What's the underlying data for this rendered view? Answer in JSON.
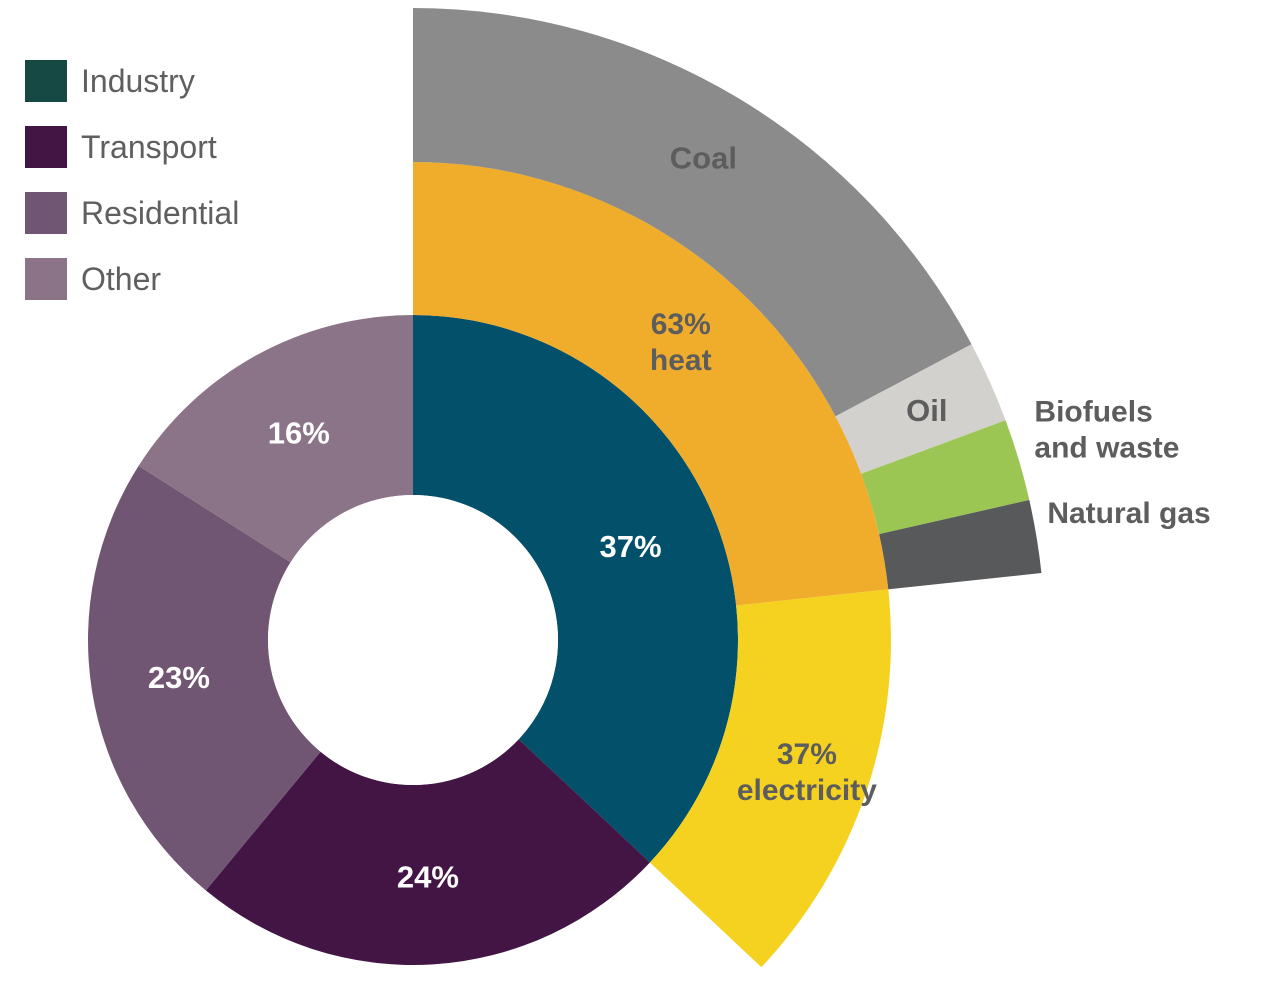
{
  "chart_data": {
    "type": "pie",
    "variant": "nested-donut",
    "inner_ring": {
      "slices": [
        {
          "name": "Industry",
          "value": 37,
          "label": "37%",
          "color": "#03506a"
        },
        {
          "name": "Transport",
          "value": 24,
          "label": "24%",
          "color": "#421545"
        },
        {
          "name": "Residential",
          "value": 23,
          "label": "23%",
          "color": "#715673"
        },
        {
          "name": "Other",
          "value": 16,
          "label": "16%",
          "color": "#8c7488"
        }
      ]
    },
    "industry_breakdown": {
      "slices": [
        {
          "name": "heat",
          "value": 63,
          "label_pct": "63%",
          "label_name": "heat",
          "color": "#f0ad2c"
        },
        {
          "name": "electricity",
          "value": 37,
          "label_pct": "37%",
          "label_name": "electricity",
          "color": "#f5d120"
        }
      ]
    },
    "heat_fuel_breakdown": {
      "slices": [
        {
          "name": "Coal",
          "label": "Coal",
          "value": 74,
          "color": "#8b8b8b"
        },
        {
          "name": "Oil",
          "label": "Oil",
          "value": 9,
          "color": "#d3d1cd"
        },
        {
          "name": "Biofuels and waste",
          "label_line1": "Biofuels",
          "label_line2": "and waste",
          "value": 9,
          "color": "#9bc653"
        },
        {
          "name": "Natural gas",
          "label": "Natural gas",
          "value": 8,
          "color": "#58595b"
        }
      ]
    },
    "legend": {
      "position": "top-left",
      "items": [
        {
          "label": "Industry",
          "color": "#164844"
        },
        {
          "label": "Transport",
          "color": "#421545"
        },
        {
          "label": "Residential",
          "color": "#715673"
        },
        {
          "label": "Other",
          "color": "#8c7488"
        }
      ]
    }
  }
}
